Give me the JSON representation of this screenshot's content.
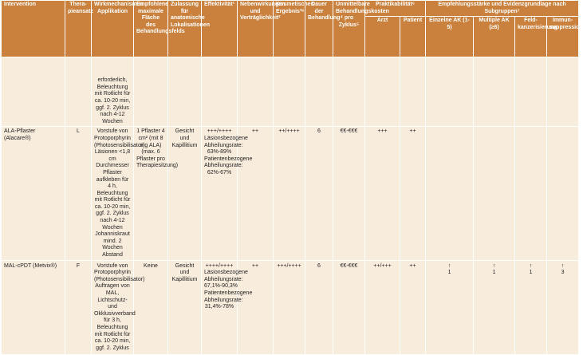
{
  "header": {
    "intervention": "Intervention",
    "therapieansatz": "Thera­pieansatz",
    "wirkmechanismus": "Wirkmechanismus Applikation",
    "flaeche": "Empfohlene maximale Fläche des Behandlungsfelds",
    "zulassung": "Zulassung für anatomische Lokalisationen",
    "effektivitaet": "Effektivität¹",
    "nebenwirkungen": "Nebenwirkungen und Verträglichkeit²",
    "kosmetik": "Kosmetisches Ergebnis³ᵃ",
    "dauer": "Dauer der Behandlung⁴",
    "kosten": "Unmittelbare Behandlungskosten pro Zyklus⁵",
    "praktikabilitaet": "Praktikabilität⁶",
    "arzt": "Arzt",
    "patient": "Patient",
    "empfehlung": "Empfehlungsstärke und Evidenzgrundlage nach Subgruppen⁷",
    "einzelne_ak": "Einzelne AK (1-5)",
    "multiple_ak": "Multiple AK (≥6)",
    "feldkanzerisierung": "Feld-kanzerisierung",
    "immunsuppression": "Immun-suppression"
  },
  "rows": {
    "continuation": {
      "wirkmechanismus": "erforderlich, Beleuchtung mit Rotlicht für ca. 10-20 min, ggf. 2. Zyklus nach 4-12 Wochen"
    },
    "ala": {
      "intervention": "ALA-Pflaster (Alacare®)",
      "therapieansatz": "L",
      "wirkmechanismus": "Vorstufe von Protoporphyrin (Photosensibilisator) Läsionen <1,8 cm Durchmesser Pflaster aufkleben für 4 h, Beleuchtung mit Rotlicht für ca. 10-20 min, ggf. 2. Zyklus nach 4-12 Wochen Johanniskraut mind. 2 Wochen Abstand",
      "flaeche": "1 Pflaster 4 cm² (mit 8 mg ALA) (max. 6 Pflaster pro Therapiesitzung)",
      "zulassung": "Gesicht und Kapillitium",
      "effektivitaet": "+++/++++ Läsionsbezogene Abheilungsrate: 63%-89% Patientenbezogene Abheilungsrate: 62%-67%",
      "nebenwirkungen": "++",
      "kosmetik": "++/++++",
      "dauer": "6",
      "kosten": "€€-€€€",
      "arzt": "+++",
      "patient": "++"
    },
    "mal": {
      "intervention": "MAL-cPDT (Metvix®)",
      "therapieansatz": "F",
      "wirkmechanismus": "Vorstufe von Protoporphyrin (Photosensibilisator) Auftragen von MAL, Lichtschutz- und Okklusivverband für 3 h, Beleuchtung mit Rotlicht für ca. 10-20 min, ggf. 2. Zyklus",
      "flaeche": "Keine",
      "zulassung": "Gesicht und Kapillitium",
      "effektivitaet": "++++/++++ Läsionsbezogene Abheilungsrate: 67,1%-90,3% Patientenbezogene Abheilungsrate: 31,4%-78%",
      "nebenwirkungen": "++",
      "kosmetik": "+++/++++",
      "dauer": "6",
      "kosten": "€€-€€€",
      "arzt": "++/+++",
      "patient": "++",
      "einzelne_ak": {
        "arrow": "↑",
        "evidence": "1"
      },
      "multiple_ak": {
        "arrow": "↑",
        "evidence": "1"
      },
      "feldkanzerisierung": {
        "arrow": "↑",
        "evidence": "1"
      },
      "immunsuppression": {
        "arrow": "↑",
        "evidence": "3"
      }
    }
  }
}
